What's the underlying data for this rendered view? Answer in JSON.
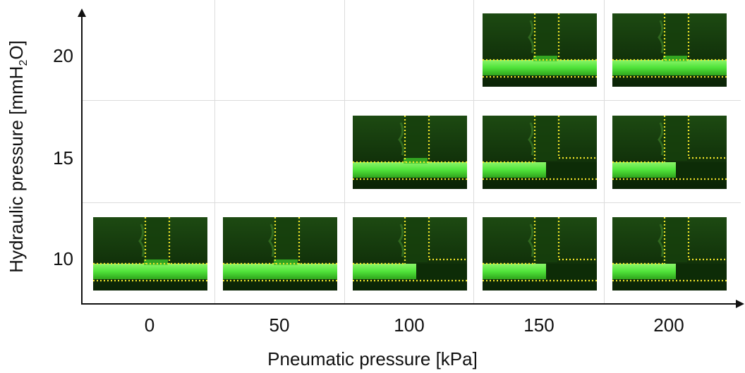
{
  "x_axis": {
    "title": "Pneumatic pressure [kPa]",
    "ticks": [
      "0",
      "50",
      "100",
      "150",
      "200"
    ]
  },
  "y_axis": {
    "title_main": "Hydraulic pressure [mmH",
    "title_sub": "2",
    "title_end": "O]",
    "ticks": [
      "20",
      "15",
      "10"
    ]
  },
  "colors": {
    "frame_background": "#0b2a06",
    "liquid_green": "#4fe33a",
    "guide_dots": "#f2e62a",
    "axis": "#111111",
    "grid": "#dcdcdc"
  },
  "frames": [
    {
      "name": "frame-0kpa-10mm",
      "pneumatic_kPa": 0,
      "hydraulic_mmH2O": 10,
      "state": "penetrated"
    },
    {
      "name": "frame-50kpa-10mm",
      "pneumatic_kPa": 50,
      "hydraulic_mmH2O": 10,
      "state": "penetrated"
    },
    {
      "name": "frame-100kpa-10mm",
      "pneumatic_kPa": 100,
      "hydraulic_mmH2O": 10,
      "state": "blocked"
    },
    {
      "name": "frame-150kpa-10mm",
      "pneumatic_kPa": 150,
      "hydraulic_mmH2O": 10,
      "state": "blocked"
    },
    {
      "name": "frame-200kpa-10mm",
      "pneumatic_kPa": 200,
      "hydraulic_mmH2O": 10,
      "state": "blocked"
    },
    {
      "name": "frame-100kpa-15mm",
      "pneumatic_kPa": 100,
      "hydraulic_mmH2O": 15,
      "state": "penetrated"
    },
    {
      "name": "frame-150kpa-15mm",
      "pneumatic_kPa": 150,
      "hydraulic_mmH2O": 15,
      "state": "blocked"
    },
    {
      "name": "frame-200kpa-15mm",
      "pneumatic_kPa": 200,
      "hydraulic_mmH2O": 15,
      "state": "blocked"
    },
    {
      "name": "frame-150kpa-20mm",
      "pneumatic_kPa": 150,
      "hydraulic_mmH2O": 20,
      "state": "penetrated"
    },
    {
      "name": "frame-200kpa-20mm",
      "pneumatic_kPa": 200,
      "hydraulic_mmH2O": 20,
      "state": "penetrated"
    }
  ]
}
